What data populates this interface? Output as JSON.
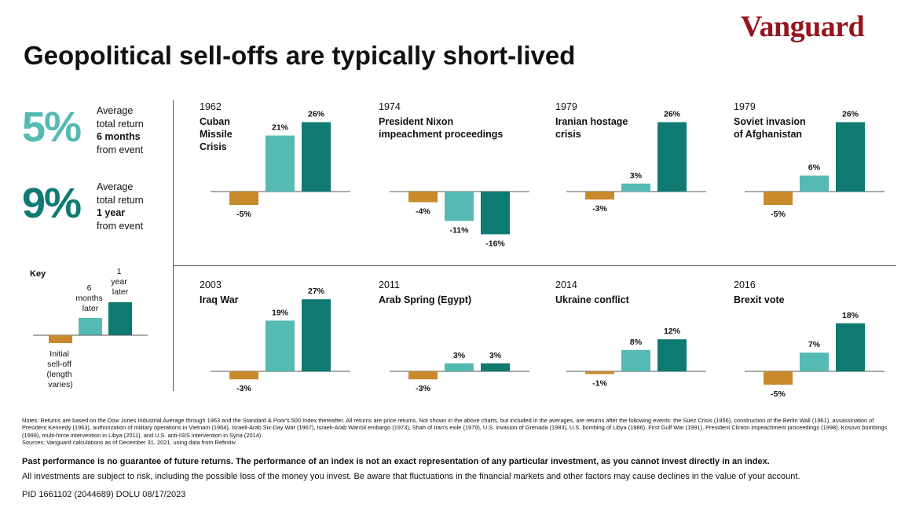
{
  "logo": "Vanguard",
  "title": "Geopolitical sell-offs are typically short-lived",
  "stats": {
    "six_month": {
      "value": "5%",
      "line1": "Average",
      "line2": "total return",
      "line3": "6 months",
      "line4": "from event"
    },
    "one_year": {
      "value": "9%",
      "line1": "Average",
      "line2": "total return",
      "line3": "1 year",
      "line4": "from event"
    }
  },
  "key": {
    "title": "Key",
    "initial_label": [
      "Initial",
      "sell-off",
      "(length",
      "varies)"
    ],
    "six_label": [
      "6",
      "months",
      "later"
    ],
    "year_label": [
      "1",
      "year",
      "later"
    ]
  },
  "colors": {
    "initial": "#c98a2b",
    "six_months": "#54bab3",
    "one_year": "#0f7a72",
    "logo": "#96151d"
  },
  "chart_data": [
    {
      "type": "bar",
      "year": "1962",
      "title_lines": [
        "Cuban",
        "Missile",
        "Crisis"
      ],
      "categories": [
        "Initial sell-off",
        "6 months later",
        "1 year later"
      ],
      "values": [
        -5,
        21,
        26
      ],
      "labels": [
        "-5%",
        "21%",
        "26%"
      ]
    },
    {
      "type": "bar",
      "year": "1974",
      "title_lines": [
        "President Nixon",
        "impeachment proceedings"
      ],
      "categories": [
        "Initial sell-off",
        "6 months later",
        "1 year later"
      ],
      "values": [
        -4,
        -11,
        -16
      ],
      "labels": [
        "-4%",
        "-11%",
        "-16%"
      ]
    },
    {
      "type": "bar",
      "year": "1979",
      "title_lines": [
        "Iranian hostage",
        "crisis"
      ],
      "categories": [
        "Initial sell-off",
        "6 months later",
        "1 year later"
      ],
      "values": [
        -3,
        3,
        26
      ],
      "labels": [
        "-3%",
        "3%",
        "26%"
      ]
    },
    {
      "type": "bar",
      "year": "1979",
      "title_lines": [
        "Soviet invasion",
        "of Afghanistan"
      ],
      "categories": [
        "Initial sell-off",
        "6 months later",
        "1 year later"
      ],
      "values": [
        -5,
        6,
        26
      ],
      "labels": [
        "-5%",
        "6%",
        "26%"
      ]
    },
    {
      "type": "bar",
      "year": "2003",
      "title_lines": [
        "Iraq War"
      ],
      "categories": [
        "Initial sell-off",
        "6 months later",
        "1 year later"
      ],
      "values": [
        -3,
        19,
        27
      ],
      "labels": [
        "-3%",
        "19%",
        "27%"
      ]
    },
    {
      "type": "bar",
      "year": "2011",
      "title_lines": [
        "Arab Spring (Egypt)"
      ],
      "categories": [
        "Initial sell-off",
        "6 months later",
        "1 year later"
      ],
      "values": [
        -3,
        3,
        3
      ],
      "labels": [
        "-3%",
        "3%",
        "3%"
      ]
    },
    {
      "type": "bar",
      "year": "2014",
      "title_lines": [
        "Ukraine conflict"
      ],
      "categories": [
        "Initial sell-off",
        "6 months later",
        "1 year later"
      ],
      "values": [
        -1,
        8,
        12
      ],
      "labels": [
        "-1%",
        "8%",
        "12%"
      ]
    },
    {
      "type": "bar",
      "year": "2016",
      "title_lines": [
        "Brexit vote"
      ],
      "categories": [
        "Initial sell-off",
        "6 months later",
        "1 year later"
      ],
      "values": [
        -5,
        7,
        18
      ],
      "labels": [
        "-5%",
        "7%",
        "18%"
      ]
    }
  ],
  "notes": "Notes: Returns are based on the Dow Jones Industrial Average through 1963 and the Standard & Poor's 500 Index thereafter. All returns are price returns. Not shown in the above charts, but included in the averages, are returns after the following events: the Suez Crisis (1956), construction of the Berlin Wall (1961), assassination of President Kennedy (1963), authorization of military operations in Vietnam (1964), Israeli-Arab Six-Day War (1967), Israeli-Arab War/oil embargo (1973), Shah of Iran's exile (1979), U.S. invasion of Grenada (1983), U.S. bombing of Libya (1986), First Gulf War (1991), President Clinton impeachment proceedings (1998), Kosovo bombings (1999), multi-force intervention in Libya (2011), and U.S. anti-ISIS intervention in Syria (2014).",
  "sources": "Sources: Vanguard calculations as of December 31, 2021, using data from Refinitiv.",
  "disclaimer_bold": "Past performance is no guarantee of future returns. The performance of an index is not an exact representation of any particular investment, as you cannot invest directly in an index.",
  "disclaimer": "All investments are subject to risk, including the possible loss of the money you invest. Be aware that fluctuations in the financial markets and other factors may cause declines in the value of your account.",
  "pid": "PID 1661102 (2044689) DOLU 08/17/2023"
}
